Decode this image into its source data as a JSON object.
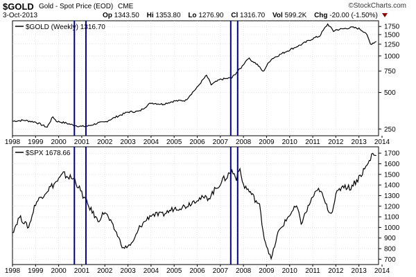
{
  "header": {
    "symbol": "$GOLD",
    "description": "Gold - Spot Price (EOD)",
    "exchange": "CME",
    "date": "3-Oct-2013",
    "brand": "©StockCharts.com",
    "quote": {
      "op_label": "Op",
      "op": "1343.50",
      "hi_label": "Hi",
      "hi": "1353.80",
      "lo_label": "Lo",
      "lo": "1276.90",
      "cl_label": "Cl",
      "cl": "1316.70",
      "vol_label": "Vol",
      "vol": "599.2K",
      "chg_label": "Chg",
      "chg": "-20.00 (-1.50%)"
    }
  },
  "chart_data": [
    {
      "type": "line",
      "title": "$GOLD (Weekly) 1316.70",
      "series_name": "$GOLD (Weekly)",
      "last_value": "1316.70",
      "yscale": "log",
      "ylim": [
        220,
        1950
      ],
      "y_ticks": [
        250,
        500,
        750,
        1000,
        1250,
        1500,
        1750
      ],
      "x": [
        1998.0,
        1998.5,
        1999.0,
        1999.5,
        1999.75,
        1999.9,
        2000.3,
        2000.6,
        2001.0,
        2001.3,
        2001.7,
        2002.0,
        2002.5,
        2003.0,
        2003.5,
        2004.0,
        2004.5,
        2005.0,
        2005.5,
        2006.0,
        2006.4,
        2006.6,
        2007.0,
        2007.5,
        2007.9,
        2008.2,
        2008.6,
        2008.85,
        2009.2,
        2009.9,
        2010.5,
        2011.0,
        2011.3,
        2011.65,
        2011.9,
        2012.0,
        2012.3,
        2012.7,
        2013.0,
        2013.3,
        2013.5,
        2013.75
      ],
      "y": [
        290,
        295,
        285,
        258,
        315,
        290,
        280,
        270,
        262,
        265,
        280,
        285,
        315,
        345,
        350,
        410,
        400,
        425,
        430,
        550,
        690,
        580,
        640,
        660,
        800,
        960,
        850,
        740,
        940,
        1100,
        1240,
        1390,
        1460,
        1830,
        1600,
        1640,
        1670,
        1720,
        1680,
        1550,
        1250,
        1316
      ]
    },
    {
      "type": "line",
      "title": "$SPX 1678.66",
      "series_name": "$SPX",
      "last_value": "1678.66",
      "ylim": [
        650,
        1760
      ],
      "y_ticks": [
        700,
        800,
        900,
        1000,
        1100,
        1200,
        1300,
        1400,
        1500,
        1600,
        1700
      ],
      "x": [
        1998.0,
        1998.3,
        1998.7,
        1999.0,
        1999.5,
        2000.0,
        2000.2,
        2000.7,
        2001.0,
        2001.3,
        2001.7,
        2002.0,
        2002.5,
        2002.8,
        2003.2,
        2003.5,
        2004.0,
        2004.5,
        2005.0,
        2005.5,
        2006.0,
        2006.5,
        2007.0,
        2007.5,
        2007.7,
        2007.8,
        2008.0,
        2008.3,
        2008.7,
        2008.9,
        2009.2,
        2009.5,
        2010.0,
        2010.3,
        2010.5,
        2011.0,
        2011.3,
        2011.6,
        2011.8,
        2012.0,
        2012.3,
        2012.6,
        2013.0,
        2013.4,
        2013.6,
        2013.75
      ],
      "y": [
        950,
        1100,
        1000,
        1230,
        1350,
        1450,
        1500,
        1450,
        1320,
        1200,
        1060,
        1150,
        950,
        800,
        850,
        1000,
        1120,
        1120,
        1180,
        1200,
        1270,
        1280,
        1420,
        1530,
        1470,
        1560,
        1400,
        1330,
        1200,
        900,
        700,
        950,
        1120,
        1200,
        1040,
        1290,
        1360,
        1200,
        1130,
        1300,
        1400,
        1370,
        1470,
        1600,
        1700,
        1678
      ]
    }
  ],
  "x_ticks": [
    "1998",
    "1999",
    "2000",
    "2001",
    "2002",
    "2003",
    "2004",
    "2005",
    "2006",
    "2007",
    "2008",
    "2009",
    "2010",
    "2011",
    "2012",
    "2013",
    "2014"
  ],
  "markers": [
    2000.68,
    2001.18,
    2007.45,
    2007.75
  ],
  "colors": {
    "line": "#000000",
    "marker": "#00008b",
    "grid": "#cfcfcf",
    "arrow": "#8b0000"
  }
}
